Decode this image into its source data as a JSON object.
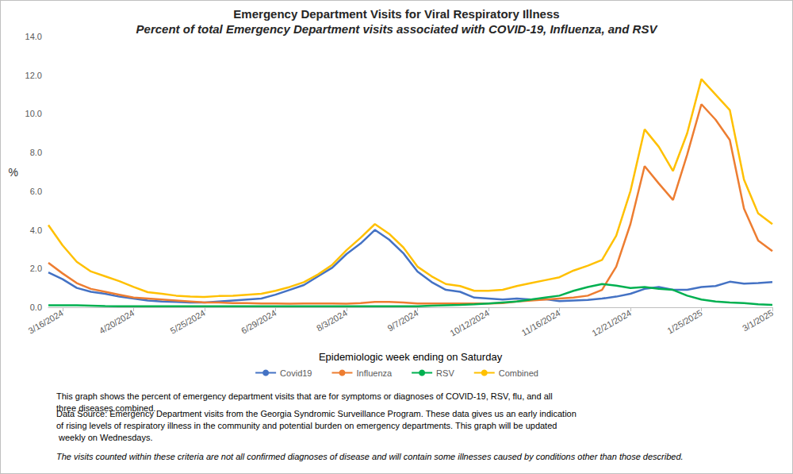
{
  "chart_data": {
    "type": "line",
    "title": "Emergency Department Visits for Viral Respiratory Illness",
    "subtitle": "Percent of total Emergency Department visits associated with COVID-19, Influenza, and RSV",
    "x_label": "Epidemiologic week ending on Saturday",
    "y_label": "%",
    "categories": [
      null,
      "3/16/2024",
      null,
      null,
      null,
      null,
      "4/20/2024",
      null,
      null,
      null,
      null,
      "5/25/2024",
      null,
      null,
      null,
      null,
      "6/29/2024",
      null,
      null,
      null,
      null,
      "8/3/2024",
      null,
      null,
      null,
      null,
      "9/7/2024",
      null,
      null,
      null,
      null,
      "10/12/2024",
      null,
      null,
      null,
      null,
      "11/16/2024",
      null,
      null,
      null,
      null,
      "12/21/2024",
      null,
      null,
      null,
      null,
      "1/25/2025",
      null,
      null,
      null,
      null,
      "3/1/2025"
    ],
    "series": [
      {
        "name": "Covid19",
        "color": "#4472c4",
        "values": [
          1.8,
          1.45,
          1.0,
          0.8,
          0.7,
          0.55,
          0.45,
          0.35,
          0.3,
          0.28,
          0.25,
          0.25,
          0.3,
          0.35,
          0.4,
          0.45,
          0.65,
          0.9,
          1.15,
          1.6,
          2.05,
          2.75,
          3.3,
          4.0,
          3.5,
          2.8,
          1.85,
          1.3,
          0.9,
          0.8,
          0.5,
          0.45,
          0.4,
          0.45,
          0.4,
          0.42,
          0.32,
          0.35,
          0.38,
          0.45,
          0.55,
          0.7,
          0.95,
          1.05,
          0.9,
          0.9,
          1.05,
          1.1,
          1.32,
          1.22,
          1.25,
          1.3
        ]
      },
      {
        "name": "Influenza",
        "color": "#ed7d31",
        "values": [
          2.3,
          1.75,
          1.25,
          0.95,
          0.8,
          0.65,
          0.5,
          0.45,
          0.4,
          0.35,
          0.3,
          0.25,
          0.25,
          0.22,
          0.22,
          0.2,
          0.2,
          0.18,
          0.2,
          0.2,
          0.2,
          0.18,
          0.22,
          0.28,
          0.28,
          0.25,
          0.2,
          0.2,
          0.2,
          0.2,
          0.2,
          0.2,
          0.22,
          0.3,
          0.35,
          0.4,
          0.45,
          0.5,
          0.6,
          0.9,
          2.1,
          4.3,
          7.3,
          6.4,
          5.55,
          7.9,
          10.5,
          9.7,
          8.65,
          5.1,
          3.45,
          2.9
        ]
      },
      {
        "name": "RSV",
        "color": "#00b050",
        "values": [
          0.1,
          0.1,
          0.1,
          0.08,
          0.06,
          0.05,
          0.05,
          0.05,
          0.05,
          0.05,
          0.05,
          0.05,
          0.05,
          0.05,
          0.05,
          0.05,
          0.05,
          0.05,
          0.05,
          0.05,
          0.05,
          0.05,
          0.05,
          0.05,
          0.05,
          0.05,
          0.05,
          0.08,
          0.1,
          0.12,
          0.15,
          0.2,
          0.25,
          0.3,
          0.4,
          0.5,
          0.6,
          0.85,
          1.05,
          1.2,
          1.12,
          1.0,
          1.05,
          0.95,
          0.9,
          0.6,
          0.4,
          0.3,
          0.25,
          0.22,
          0.15,
          0.12
        ]
      },
      {
        "name": "Combined",
        "color": "#ffc000",
        "values": [
          4.25,
          3.2,
          2.35,
          1.85,
          1.6,
          1.35,
          1.05,
          0.78,
          0.7,
          0.6,
          0.55,
          0.53,
          0.58,
          0.6,
          0.65,
          0.7,
          0.85,
          1.05,
          1.3,
          1.7,
          2.2,
          2.95,
          3.6,
          4.3,
          3.8,
          3.1,
          2.1,
          1.6,
          1.2,
          1.1,
          0.85,
          0.85,
          0.9,
          1.1,
          1.25,
          1.4,
          1.55,
          1.9,
          2.15,
          2.45,
          3.7,
          6.0,
          9.2,
          8.3,
          7.05,
          9.0,
          11.8,
          11.0,
          10.2,
          6.6,
          4.85,
          4.3
        ]
      }
    ],
    "ylim": [
      0,
      14
    ],
    "yticks": [
      {
        "value": 0,
        "label": "0.0"
      },
      {
        "value": 2,
        "label": "2.0"
      },
      {
        "value": 4,
        "label": "4.0"
      },
      {
        "value": 6,
        "label": "6.0"
      },
      {
        "value": 8,
        "label": "8.0"
      },
      {
        "value": 10,
        "label": "10.0"
      },
      {
        "value": 12,
        "label": "12.0"
      },
      {
        "value": 14,
        "label": "14.0"
      }
    ],
    "grid": false,
    "legend": "bottom",
    "annotations": [
      "This graph shows the percent of emergency department visits that are for symptoms or diagnoses of COVID-19, RSV, flu, and all three diseases combined.",
      "Data Source: Emergency Department visits from the Georgia Syndromic Surveillance Program. These data gives us an early indication of rising levels of respiratory illness in the community and potential burden on emergency departments. This graph will be updated weekly on Wednesdays.",
      "The visits counted within these criteria are not all confirmed diagnoses of disease and will contain some illnesses caused by conditions other than those described."
    ]
  }
}
